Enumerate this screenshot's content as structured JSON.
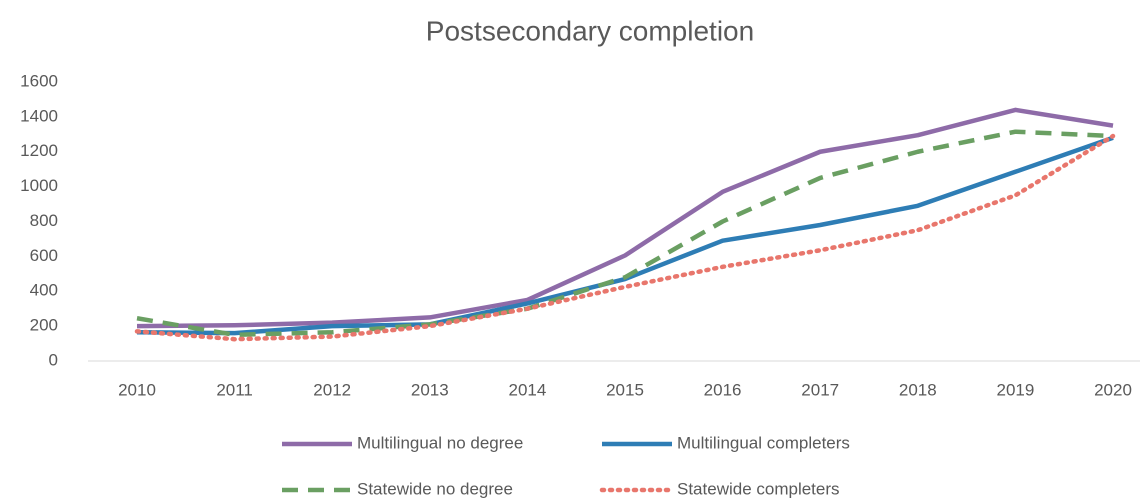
{
  "chart_data": {
    "type": "line",
    "title": "Postsecondary completion",
    "categories": [
      "2010",
      "2011",
      "2012",
      "2013",
      "2014",
      "2015",
      "2016",
      "2017",
      "2018",
      "2019",
      "2020"
    ],
    "series": [
      {
        "name": "Multilingual no degree",
        "color": "#8e6ba8",
        "dash": "solid",
        "values": [
          200,
          205,
          220,
          250,
          350,
          605,
          970,
          1200,
          1295,
          1440,
          1350
        ]
      },
      {
        "name": "Multilingual completers",
        "color": "#2e7db5",
        "dash": "solid",
        "values": [
          165,
          160,
          200,
          210,
          330,
          470,
          690,
          780,
          890,
          1085,
          1280
        ]
      },
      {
        "name": "Statewide no degree",
        "color": "#6a9f62",
        "dash": "dashed",
        "values": [
          245,
          150,
          165,
          210,
          300,
          480,
          800,
          1050,
          1200,
          1315,
          1290
        ]
      },
      {
        "name": "Statewide completers",
        "color": "#e8766c",
        "dash": "dotted",
        "values": [
          170,
          125,
          140,
          200,
          300,
          425,
          540,
          635,
          750,
          950,
          1290
        ]
      }
    ],
    "ylim": [
      0,
      1600
    ],
    "yticks": [
      0,
      200,
      400,
      600,
      800,
      1000,
      1200,
      1400,
      1600
    ],
    "grid": false,
    "legend": "bottom"
  }
}
